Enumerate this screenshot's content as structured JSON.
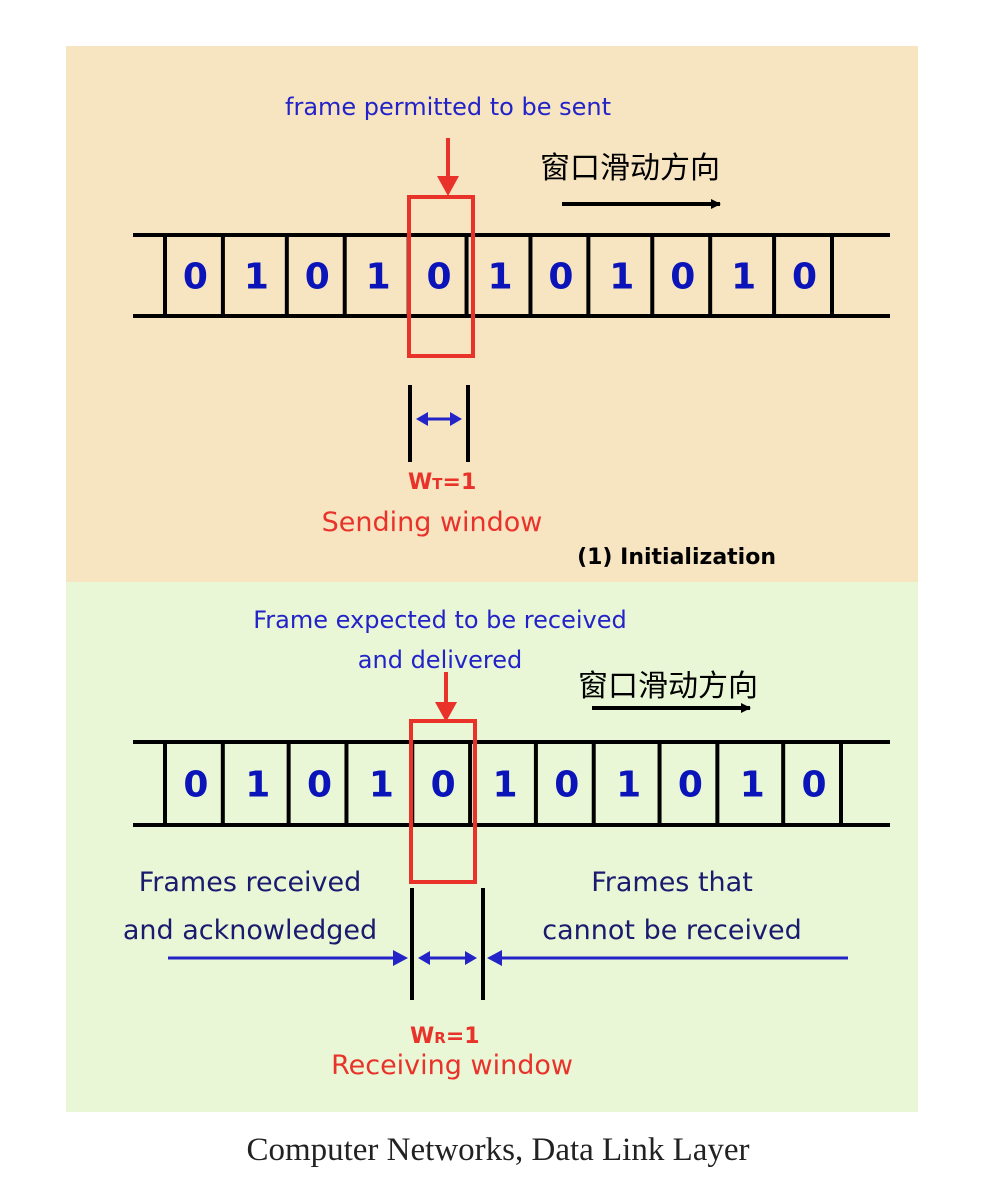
{
  "colors": {
    "top_panel": "#f7e4c1",
    "bottom_panel": "#e9f7d6",
    "blue": "#2323c8",
    "bit_blue": "#0a14b8",
    "red": "#e8322a",
    "black": "#000000"
  },
  "top": {
    "label": "frame permitted to be sent",
    "direction": "窗口滑动方向",
    "bits": [
      "0",
      "1",
      "0",
      "1",
      "0",
      "1",
      "0",
      "1",
      "0",
      "1",
      "0"
    ],
    "window_index": 4,
    "window_w": "W",
    "window_sub": "T",
    "window_eq": "=1",
    "window_name": "Sending window",
    "step_label": "(1) Initialization"
  },
  "bottom": {
    "label_line1": "Frame expected to be received",
    "label_line2": "and delivered",
    "direction": "窗口滑动方向",
    "bits": [
      "0",
      "1",
      "0",
      "1",
      "0",
      "1",
      "0",
      "1",
      "0",
      "1",
      "0"
    ],
    "window_index": 4,
    "left_line1": "Frames received",
    "left_line2": "and acknowledged",
    "right_line1": "Frames that",
    "right_line2": "cannot be received",
    "window_w": "W",
    "window_sub": "R",
    "window_eq": "=1",
    "window_name": "Receiving window"
  },
  "caption": "Computer Networks, Data Link Layer"
}
